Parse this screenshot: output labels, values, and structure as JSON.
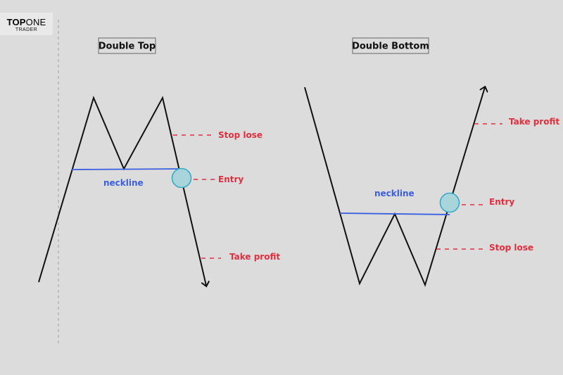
{
  "logo": {
    "top": "TOP",
    "one": "ONE",
    "sub": "TRADER"
  },
  "double_top": {
    "title": "Double Top",
    "neckline_label": "neckline",
    "stop_label": "Stop lose",
    "entry_label": "Entry",
    "tp_label": "Take profit"
  },
  "double_bottom": {
    "title": "Double Bottom",
    "neckline_label": "neckline",
    "stop_label": "Stop lose",
    "entry_label": "Entry",
    "tp_label": "Take profit"
  },
  "colors": {
    "background": "#dcdcdc",
    "price_line": "#111111",
    "neckline": "#3b5fe0",
    "levels": "#e03040",
    "entry_fill": "#a8d4dc",
    "entry_stroke": "#3aa9c4"
  }
}
